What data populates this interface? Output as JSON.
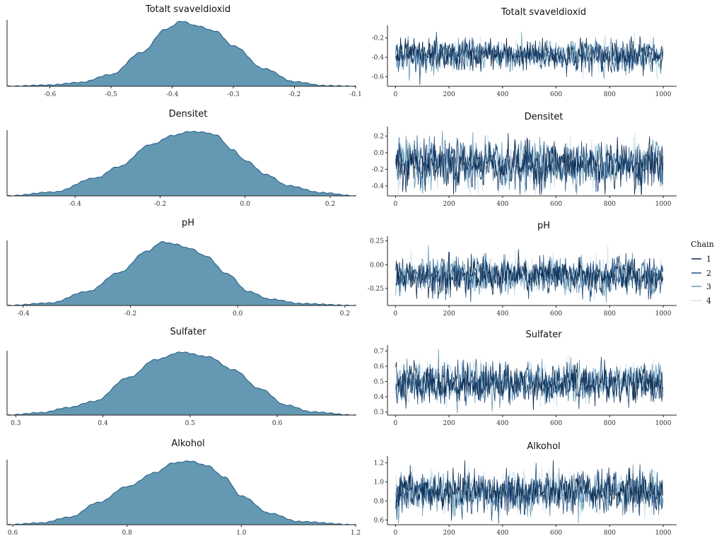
{
  "chart_data": [
    {
      "type": "area",
      "title": "Totalt svaveldioxid",
      "xlabel": "",
      "ylabel": "",
      "xlim": [
        -0.67,
        -0.1
      ],
      "xticks": [
        -0.6,
        -0.5,
        -0.4,
        -0.3,
        -0.2,
        -0.1
      ],
      "xtick_labels": [
        "-0.6",
        "-0.5",
        "-0.4",
        "-0.3",
        "-0.2",
        "-0.1"
      ],
      "density": {
        "x": [
          -0.67,
          -0.6,
          -0.55,
          -0.5,
          -0.45,
          -0.41,
          -0.385,
          -0.36,
          -0.33,
          -0.3,
          -0.25,
          -0.2,
          -0.15,
          -0.1
        ],
        "y": [
          0.0,
          0.02,
          0.06,
          0.18,
          0.52,
          0.88,
          1.0,
          0.93,
          0.85,
          0.62,
          0.27,
          0.07,
          0.01,
          0.0
        ]
      },
      "fill": "#6599b3"
    },
    {
      "type": "line",
      "title": "Totalt svaveldioxid",
      "xlim": [
        -30,
        1050
      ],
      "ylim": [
        -0.7,
        -0.1
      ],
      "xticks": [
        0,
        200,
        400,
        600,
        800,
        1000
      ],
      "xtick_labels": [
        "0",
        "200",
        "400",
        "600",
        "800",
        "1000"
      ],
      "yticks": [
        -0.2,
        -0.4,
        -0.6
      ],
      "ytick_labels": [
        "-0.2",
        "-0.4",
        "-0.6"
      ],
      "trace": {
        "iterations": 1000,
        "chains": 4,
        "center": -0.38,
        "spread": 0.075
      }
    },
    {
      "type": "area",
      "title": "Densitet",
      "xlim": [
        -0.56,
        0.26
      ],
      "xticks": [
        -0.4,
        -0.2,
        0.0,
        0.2
      ],
      "xtick_labels": [
        "-0.4",
        "-0.2",
        "0.0",
        "0.2"
      ],
      "density": {
        "x": [
          -0.56,
          -0.45,
          -0.35,
          -0.3,
          -0.22,
          -0.17,
          -0.13,
          -0.1,
          -0.07,
          -0.03,
          0.0,
          0.05,
          0.1,
          0.18,
          0.26
        ],
        "y": [
          0.0,
          0.06,
          0.28,
          0.45,
          0.8,
          0.94,
          1.0,
          0.99,
          0.95,
          0.72,
          0.55,
          0.33,
          0.16,
          0.05,
          0.0
        ]
      },
      "fill": "#6599b3"
    },
    {
      "type": "line",
      "title": "Densitet",
      "xlim": [
        -30,
        1050
      ],
      "ylim": [
        -0.52,
        0.28
      ],
      "xticks": [
        0,
        200,
        400,
        600,
        800,
        1000
      ],
      "xtick_labels": [
        "0",
        "200",
        "400",
        "600",
        "800",
        "1000"
      ],
      "yticks": [
        0.2,
        0.0,
        -0.2,
        -0.4
      ],
      "ytick_labels": [
        "0.2",
        "0.0",
        "-0.2",
        "-0.4"
      ],
      "trace": {
        "iterations": 1000,
        "chains": 4,
        "center": -0.14,
        "spread": 0.13
      }
    },
    {
      "type": "area",
      "title": "pH",
      "xlim": [
        -0.43,
        0.22
      ],
      "xticks": [
        -0.4,
        -0.2,
        0.0,
        0.2
      ],
      "xtick_labels": [
        "-0.4",
        "-0.2",
        "0.0",
        "0.2"
      ],
      "density": {
        "x": [
          -0.43,
          -0.35,
          -0.28,
          -0.22,
          -0.17,
          -0.14,
          -0.12,
          -0.09,
          -0.06,
          -0.02,
          0.02,
          0.06,
          0.12,
          0.22
        ],
        "y": [
          0.0,
          0.04,
          0.22,
          0.52,
          0.85,
          1.0,
          0.97,
          0.9,
          0.78,
          0.5,
          0.22,
          0.1,
          0.03,
          0.0
        ]
      },
      "fill": "#6599b3"
    },
    {
      "type": "line",
      "title": "pH",
      "xlim": [
        -30,
        1050
      ],
      "ylim": [
        -0.43,
        0.27
      ],
      "xticks": [
        0,
        200,
        400,
        600,
        800,
        1000
      ],
      "xtick_labels": [
        "0",
        "200",
        "400",
        "600",
        "800",
        "1000"
      ],
      "yticks": [
        0.25,
        0.0,
        -0.25
      ],
      "ytick_labels": [
        "0.25",
        "0.00",
        "-0.25"
      ],
      "trace": {
        "iterations": 1000,
        "chains": 4,
        "center": -0.12,
        "spread": 0.09
      }
    },
    {
      "type": "area",
      "title": "Sulfater",
      "xlim": [
        0.29,
        0.69
      ],
      "xticks": [
        0.3,
        0.4,
        0.5,
        0.6
      ],
      "xtick_labels": [
        "0.3",
        "0.4",
        "0.5",
        "0.6"
      ],
      "density": {
        "x": [
          0.29,
          0.33,
          0.36,
          0.39,
          0.43,
          0.46,
          0.49,
          0.52,
          0.55,
          0.58,
          0.61,
          0.64,
          0.69
        ],
        "y": [
          0.0,
          0.04,
          0.12,
          0.22,
          0.6,
          0.88,
          1.0,
          0.93,
          0.72,
          0.42,
          0.16,
          0.05,
          0.0
        ]
      },
      "fill": "#6599b3"
    },
    {
      "type": "line",
      "title": "Sulfater",
      "xlim": [
        -30,
        1050
      ],
      "ylim": [
        0.28,
        0.72
      ],
      "xticks": [
        0,
        200,
        400,
        600,
        800,
        1000
      ],
      "xtick_labels": [
        "0",
        "200",
        "400",
        "600",
        "800",
        "1000"
      ],
      "yticks": [
        0.7,
        0.6,
        0.5,
        0.4,
        0.3
      ],
      "ytick_labels": [
        "0.7",
        "0.6",
        "0.5",
        "0.4",
        "0.3"
      ],
      "trace": {
        "iterations": 1000,
        "chains": 4,
        "center": 0.49,
        "spread": 0.06
      }
    },
    {
      "type": "area",
      "title": "Alkohol",
      "xlim": [
        0.59,
        1.2
      ],
      "xticks": [
        0.6,
        0.8,
        1.0,
        1.2
      ],
      "xtick_labels": [
        "0.6",
        "0.8",
        "1.0",
        "1.2"
      ],
      "density": {
        "x": [
          0.59,
          0.65,
          0.7,
          0.75,
          0.8,
          0.85,
          0.88,
          0.91,
          0.94,
          0.97,
          1.0,
          1.05,
          1.1,
          1.2
        ],
        "y": [
          0.0,
          0.03,
          0.12,
          0.35,
          0.6,
          0.82,
          0.97,
          1.0,
          0.93,
          0.75,
          0.45,
          0.18,
          0.05,
          0.0
        ]
      },
      "fill": "#6599b3"
    },
    {
      "type": "line",
      "title": "Alkohol",
      "xlim": [
        -30,
        1050
      ],
      "ylim": [
        0.55,
        1.24
      ],
      "xticks": [
        0,
        200,
        400,
        600,
        800,
        1000
      ],
      "xtick_labels": [
        "0",
        "200",
        "400",
        "600",
        "800",
        "1000"
      ],
      "yticks": [
        1.2,
        1.0,
        0.8,
        0.6
      ],
      "ytick_labels": [
        "1.2",
        "1.0",
        "0.8",
        "0.6"
      ],
      "trace": {
        "iterations": 1000,
        "chains": 4,
        "center": 0.89,
        "spread": 0.1
      }
    }
  ],
  "legend": {
    "title": "Chain",
    "items": [
      {
        "label": "1",
        "color": "#0d2b4f"
      },
      {
        "label": "2",
        "color": "#1f4e82"
      },
      {
        "label": "3",
        "color": "#6599b3"
      },
      {
        "label": "4",
        "color": "#cfe1ee"
      }
    ]
  }
}
